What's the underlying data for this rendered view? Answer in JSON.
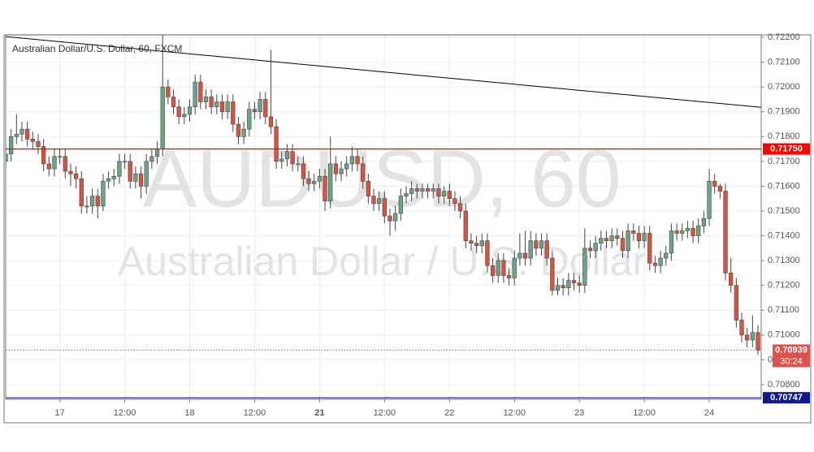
{
  "chart_data": {
    "type": "candlestick",
    "title": "Australian Dollar/U.S. Dollar, 60, FXCM",
    "watermark": [
      "AUDUSD, 60",
      "Australian Dollar / U.S. Dollar"
    ],
    "up_color": "#6ba583",
    "down_color": "#d75442",
    "grid": true,
    "xlim": [
      0,
      139.6
    ],
    "ylim": [
      0.70741,
      0.7221
    ],
    "xticks": [
      {
        "value": 10,
        "label": "17"
      },
      {
        "value": 22,
        "label": "12:00"
      },
      {
        "value": 34,
        "label": "18"
      },
      {
        "value": 46,
        "label": "12:00"
      },
      {
        "value": 58,
        "label": "21",
        "bold": true
      },
      {
        "value": 70,
        "label": "12:00"
      },
      {
        "value": 82,
        "label": "22"
      },
      {
        "value": 94,
        "label": "12:00"
      },
      {
        "value": 106,
        "label": "23"
      },
      {
        "value": 118,
        "label": "12:00"
      },
      {
        "value": 130,
        "label": "24"
      }
    ],
    "yticks": [
      {
        "value": 0.722,
        "label": "0.72200"
      },
      {
        "value": 0.721,
        "label": "0.72100"
      },
      {
        "value": 0.72,
        "label": "0.72000"
      },
      {
        "value": 0.719,
        "label": "0.71900"
      },
      {
        "value": 0.718,
        "label": "0.71800"
      },
      {
        "value": 0.717,
        "label": "0.71700"
      },
      {
        "value": 0.716,
        "label": "0.71600"
      },
      {
        "value": 0.715,
        "label": "0.71500"
      },
      {
        "value": 0.714,
        "label": "0.71400"
      },
      {
        "value": 0.713,
        "label": "0.71300"
      },
      {
        "value": 0.712,
        "label": "0.71200"
      },
      {
        "value": 0.711,
        "label": "0.71100"
      },
      {
        "value": 0.71,
        "label": "0.71000"
      },
      {
        "value": 0.709,
        "label": "0.70900"
      },
      {
        "value": 0.708,
        "label": "0.70800"
      }
    ],
    "open": [
      0.717,
      0.7173,
      0.718,
      0.7181,
      0.7183,
      0.7179,
      0.7178,
      0.7176,
      0.7169,
      0.7167,
      0.7172,
      0.7172,
      0.7166,
      0.7165,
      0.7163,
      0.7152,
      0.7152,
      0.7156,
      0.7152,
      0.7162,
      0.7163,
      0.7164,
      0.717,
      0.717,
      0.7162,
      0.7165,
      0.716,
      0.717,
      0.7172,
      0.7175,
      0.72,
      0.7196,
      0.7192,
      0.7188,
      0.7189,
      0.7192,
      0.7202,
      0.7194,
      0.7196,
      0.7192,
      0.7194,
      0.719,
      0.7194,
      0.7185,
      0.718,
      0.7183,
      0.7191,
      0.719,
      0.7195,
      0.7188,
      0.7184,
      0.717,
      0.7171,
      0.7174,
      0.7169,
      0.7169,
      0.7163,
      0.7161,
      0.7162,
      0.7164,
      0.7154,
      0.7169,
      0.7165,
      0.7167,
      0.7169,
      0.7172,
      0.7169,
      0.7162,
      0.7156,
      0.7153,
      0.7155,
      0.7148,
      0.7146,
      0.7149,
      0.7156,
      0.7157,
      0.7159,
      0.7158,
      0.7159,
      0.7158,
      0.7159,
      0.7156,
      0.7158,
      0.7155,
      0.7153,
      0.715,
      0.7138,
      0.7137,
      0.7136,
      0.7138,
      0.7128,
      0.7124,
      0.713,
      0.7124,
      0.7123,
      0.7131,
      0.7133,
      0.7131,
      0.7138,
      0.7135,
      0.7138,
      0.7131,
      0.7118,
      0.712,
      0.7119,
      0.7122,
      0.7121,
      0.712,
      0.7135,
      0.7134,
      0.7137,
      0.7139,
      0.7138,
      0.714,
      0.7139,
      0.7134,
      0.7142,
      0.7141,
      0.7138,
      0.7141,
      0.7129,
      0.7128,
      0.7131,
      0.7133,
      0.7142,
      0.7141,
      0.7142,
      0.7143,
      0.714,
      0.7144,
      0.7147,
      0.7162,
      0.716,
      0.7158,
      0.7125,
      0.712,
      0.7106,
      0.71,
      0.7098,
      0.7101
    ],
    "high": [
      0.7176,
      0.7183,
      0.7189,
      0.7186,
      0.7186,
      0.7182,
      0.7181,
      0.7179,
      0.7172,
      0.7175,
      0.7175,
      0.7175,
      0.7169,
      0.7168,
      0.7166,
      0.7156,
      0.7159,
      0.7159,
      0.7165,
      0.7166,
      0.7167,
      0.7173,
      0.7173,
      0.7173,
      0.7168,
      0.7168,
      0.7173,
      0.7175,
      0.7178,
      0.7221,
      0.7203,
      0.7199,
      0.7195,
      0.7192,
      0.7195,
      0.7205,
      0.7205,
      0.7199,
      0.7199,
      0.7197,
      0.7197,
      0.7197,
      0.7197,
      0.7188,
      0.7186,
      0.7194,
      0.7194,
      0.7198,
      0.7198,
      0.7215,
      0.7187,
      0.7174,
      0.7177,
      0.7177,
      0.7172,
      0.7172,
      0.7166,
      0.7165,
      0.7167,
      0.7167,
      0.718,
      0.7172,
      0.717,
      0.7172,
      0.7176,
      0.7175,
      0.7172,
      0.7165,
      0.7159,
      0.7158,
      0.7158,
      0.7151,
      0.7152,
      0.7159,
      0.716,
      0.7162,
      0.7161,
      0.7161,
      0.7161,
      0.7161,
      0.7161,
      0.716,
      0.7161,
      0.7158,
      0.7156,
      0.7153,
      0.7141,
      0.714,
      0.7141,
      0.7141,
      0.7131,
      0.7133,
      0.7133,
      0.7127,
      0.7134,
      0.7141,
      0.7142,
      0.7142,
      0.7141,
      0.7141,
      0.7141,
      0.7134,
      0.7123,
      0.7123,
      0.7125,
      0.7125,
      0.7124,
      0.7143,
      0.7138,
      0.714,
      0.7142,
      0.7142,
      0.7143,
      0.7143,
      0.7142,
      0.7145,
      0.7145,
      0.7144,
      0.7144,
      0.7144,
      0.7132,
      0.7134,
      0.7136,
      0.7145,
      0.7145,
      0.7145,
      0.7146,
      0.7146,
      0.7147,
      0.715,
      0.7167,
      0.7165,
      0.7161,
      0.7161,
      0.7131,
      0.7123,
      0.7109,
      0.7103,
      0.7108,
      0.7104
    ],
    "low": [
      0.7167,
      0.717,
      0.7177,
      0.7178,
      0.7176,
      0.7175,
      0.7173,
      0.7166,
      0.7164,
      0.7164,
      0.7169,
      0.7163,
      0.716,
      0.7159,
      0.7149,
      0.7149,
      0.7149,
      0.7147,
      0.715,
      0.7159,
      0.716,
      0.7161,
      0.7167,
      0.7159,
      0.7159,
      0.7155,
      0.7157,
      0.7167,
      0.7169,
      0.7172,
      0.7193,
      0.7189,
      0.7185,
      0.7185,
      0.7186,
      0.7189,
      0.7191,
      0.7191,
      0.7189,
      0.7189,
      0.7187,
      0.7187,
      0.7182,
      0.7177,
      0.7177,
      0.718,
      0.7187,
      0.7187,
      0.7185,
      0.7181,
      0.7167,
      0.7167,
      0.7168,
      0.7166,
      0.7166,
      0.716,
      0.7158,
      0.7158,
      0.7159,
      0.715,
      0.7151,
      0.7162,
      0.7162,
      0.7164,
      0.7166,
      0.7166,
      0.7159,
      0.7153,
      0.715,
      0.715,
      0.7145,
      0.714,
      0.7142,
      0.7146,
      0.7153,
      0.7154,
      0.7155,
      0.7155,
      0.7155,
      0.7155,
      0.7153,
      0.7153,
      0.7152,
      0.715,
      0.7147,
      0.7135,
      0.7134,
      0.7133,
      0.7133,
      0.7125,
      0.7121,
      0.7121,
      0.7121,
      0.712,
      0.712,
      0.7128,
      0.7128,
      0.7128,
      0.7132,
      0.7132,
      0.7128,
      0.7116,
      0.7116,
      0.7116,
      0.7116,
      0.7118,
      0.7117,
      0.7117,
      0.7131,
      0.7131,
      0.7134,
      0.7135,
      0.7135,
      0.7136,
      0.7131,
      0.7131,
      0.7138,
      0.7135,
      0.7135,
      0.7126,
      0.7125,
      0.7125,
      0.7128,
      0.713,
      0.7138,
      0.7138,
      0.7139,
      0.7137,
      0.7137,
      0.7141,
      0.7144,
      0.7157,
      0.7155,
      0.7122,
      0.7117,
      0.7103,
      0.7097,
      0.7095,
      0.7095,
      0.7092
    ],
    "close": [
      0.7173,
      0.718,
      0.7181,
      0.7183,
      0.7179,
      0.7178,
      0.7176,
      0.7169,
      0.7167,
      0.7172,
      0.7172,
      0.7166,
      0.7165,
      0.7163,
      0.7152,
      0.7152,
      0.7156,
      0.7152,
      0.7162,
      0.7163,
      0.7164,
      0.717,
      0.717,
      0.7162,
      0.7165,
      0.716,
      0.717,
      0.7172,
      0.7175,
      0.72,
      0.7196,
      0.7192,
      0.7188,
      0.7189,
      0.7192,
      0.7202,
      0.7194,
      0.7196,
      0.7192,
      0.7194,
      0.719,
      0.7194,
      0.7185,
      0.718,
      0.7183,
      0.7191,
      0.719,
      0.7195,
      0.7188,
      0.7184,
      0.717,
      0.7171,
      0.7174,
      0.7169,
      0.7169,
      0.7163,
      0.7161,
      0.7162,
      0.7164,
      0.7154,
      0.7169,
      0.7165,
      0.7167,
      0.7169,
      0.7172,
      0.7169,
      0.7162,
      0.7156,
      0.7153,
      0.7155,
      0.7148,
      0.7146,
      0.7149,
      0.7156,
      0.7157,
      0.7159,
      0.7158,
      0.7159,
      0.7158,
      0.7159,
      0.7156,
      0.7158,
      0.7155,
      0.7153,
      0.715,
      0.7138,
      0.7137,
      0.7136,
      0.7138,
      0.7128,
      0.7124,
      0.713,
      0.7124,
      0.7123,
      0.7131,
      0.7133,
      0.7131,
      0.7138,
      0.7135,
      0.7138,
      0.7131,
      0.7118,
      0.712,
      0.7119,
      0.7122,
      0.7121,
      0.712,
      0.7135,
      0.7134,
      0.7137,
      0.7139,
      0.7138,
      0.714,
      0.7139,
      0.7134,
      0.7142,
      0.7141,
      0.7138,
      0.7141,
      0.7129,
      0.7128,
      0.7131,
      0.7133,
      0.7142,
      0.7141,
      0.7142,
      0.7143,
      0.714,
      0.7144,
      0.7147,
      0.7162,
      0.716,
      0.7158,
      0.7125,
      0.712,
      0.7106,
      0.71,
      0.7098,
      0.7101,
      0.70939
    ],
    "trendline": {
      "x": [
        0,
        139.6
      ],
      "y": [
        0.72203,
        0.71918
      ],
      "color": "#000000"
    },
    "levels": [
      {
        "value": 0.7175,
        "label": "0.71750",
        "color": "#ff0000"
      },
      {
        "value": 0.70747,
        "label": "0.70747",
        "color": "#0d1a8c"
      }
    ],
    "last_price": {
      "value": 0.70939,
      "label": "0.70939",
      "countdown": "30:24",
      "color": "#d9534f"
    }
  }
}
